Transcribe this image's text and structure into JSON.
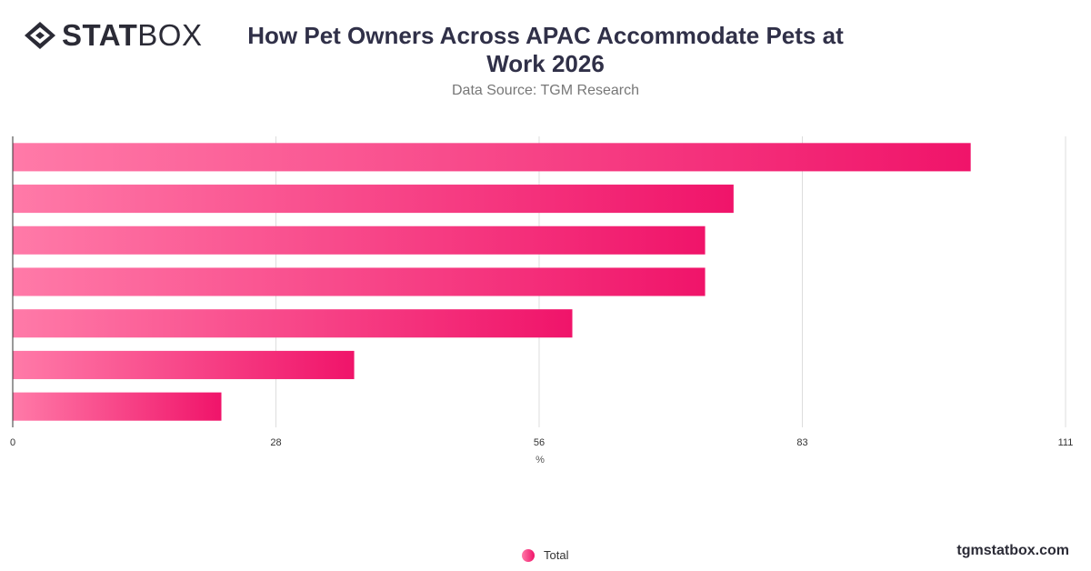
{
  "brand": {
    "logo_bold": "STAT",
    "logo_light": "BOX",
    "footer": "tgmstatbox.com"
  },
  "header": {
    "title_line1": "How Pet Owners Across APAC Accommodate Pets at",
    "title_line2": "Work 2026",
    "subtitle": "Data Source: TGM Research"
  },
  "colors": {
    "bar_start": "#ff7aa8",
    "bar_end": "#f0146a",
    "grid": "#dddddd",
    "axis": "#333333"
  },
  "chart_data": {
    "type": "bar",
    "orientation": "horizontal",
    "categories": [
      "",
      "",
      "",
      "",
      "",
      "",
      ""
    ],
    "series": [
      {
        "name": "Total",
        "values": [
          101,
          76,
          73,
          73,
          59,
          36,
          22
        ]
      }
    ],
    "xlabel": "%",
    "ylabel": "",
    "xlim": [
      0,
      111
    ],
    "xticks": [
      "0",
      "28",
      "56",
      "83",
      "111"
    ],
    "grid": true,
    "legend": "bottom-center"
  }
}
